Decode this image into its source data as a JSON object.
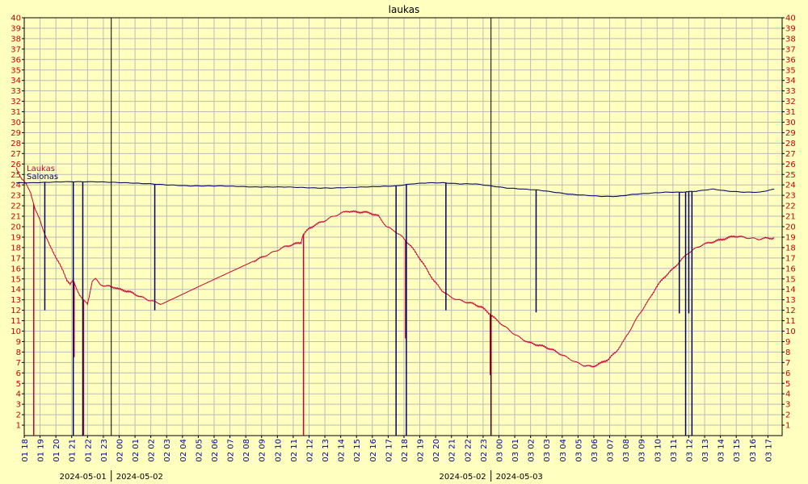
{
  "chart_data": {
    "type": "line",
    "title": "laukas",
    "xlabel": "",
    "ylabel": "",
    "ylim": [
      0,
      40
    ],
    "grid": true,
    "legend_position": "top-left",
    "y_ticks": [
      1,
      2,
      3,
      4,
      5,
      6,
      7,
      8,
      9,
      10,
      11,
      12,
      13,
      14,
      15,
      16,
      17,
      18,
      19,
      20,
      21,
      22,
      23,
      24,
      25,
      26,
      27,
      28,
      29,
      30,
      31,
      32,
      33,
      34,
      35,
      36,
      37,
      38,
      39,
      40
    ],
    "x_ticks": [
      "01 18",
      "01 19",
      "01 20",
      "01 21",
      "01 22",
      "01 23",
      "02 00",
      "02 01",
      "02 02",
      "02 03",
      "02 04",
      "02 05",
      "02 06",
      "02 07",
      "02 08",
      "02 09",
      "02 10",
      "02 11",
      "02 12",
      "02 13",
      "02 14",
      "02 15",
      "02 16",
      "02 17",
      "02 18",
      "02 19",
      "02 20",
      "02 21",
      "02 22",
      "02 23",
      "03 00",
      "03 01",
      "03 02",
      "03 03",
      "03 04",
      "03 05",
      "03 06",
      "03 07",
      "03 08",
      "03 09",
      "03 10",
      "03 11",
      "03 12",
      "03 13",
      "03 14",
      "03 15",
      "03 16",
      "03 17"
    ],
    "day_markers": [
      {
        "hour": 6,
        "left": "2024-05-01",
        "right": "2024-05-02"
      },
      {
        "hour": 30,
        "left": "2024-05-02",
        "right": "2024-05-03"
      }
    ],
    "colors": {
      "laukas": "#CC0033",
      "salonas": "#000066",
      "axis_red": "#CC0000",
      "axis_blue": "#0000AA",
      "grid": "#BBBBBB",
      "background": "#FFFFC0"
    },
    "series": [
      {
        "name": "Laukas",
        "color": "#CC0033",
        "x": [
          0.0,
          0.3,
          0.6,
          0.9,
          1.2,
          1.5,
          1.8,
          2.1,
          2.4,
          2.7,
          3.0,
          3.2,
          3.4,
          3.6,
          3.8,
          4.0,
          4.2,
          4.5,
          4.8,
          5.0,
          5.3,
          5.6,
          5.9,
          6.2,
          6.5,
          6.8,
          7.1,
          7.4,
          7.7,
          8.0,
          8.3,
          8.6,
          8.9,
          9.2,
          12.0,
          15.0,
          17.0,
          18.0,
          18.1,
          18.5,
          18.9,
          19.4,
          19.9,
          20.4,
          20.9,
          21.4,
          21.9,
          22.4,
          22.9,
          23.4,
          23.9,
          24.4,
          24.9,
          25.4,
          25.9,
          26.4,
          26.9,
          27.4,
          27.9,
          28.4,
          28.9,
          29.4,
          29.9,
          30.4,
          30.9,
          31.4,
          31.9,
          32.4,
          32.9,
          33.4,
          33.9,
          34.4,
          34.9,
          35.4,
          35.9,
          36.4,
          36.9,
          37.4,
          37.9,
          38.4,
          38.9,
          39.4,
          39.9,
          40.4,
          40.9,
          41.4,
          41.9,
          42.4,
          42.9,
          43.4,
          43.9,
          44.4,
          44.9,
          45.4,
          45.9,
          46.4,
          46.9,
          47.4,
          47.9
        ],
        "y": [
          25.6,
          24.7,
          24.1,
          23.3,
          21.6,
          20.6,
          19.3,
          18.2,
          17.4,
          16.5,
          15.6,
          14.9,
          14.5,
          14.8,
          14.1,
          13.5,
          13.0,
          12.6,
          14.8,
          15.0,
          14.5,
          14.3,
          14.3,
          14.2,
          14.0,
          13.9,
          13.8,
          13.6,
          13.4,
          13.2,
          13.0,
          12.9,
          12.7,
          12.6,
          14.6,
          16.7,
          18.1,
          18.5,
          19.2,
          19.8,
          20.2,
          20.5,
          20.9,
          21.2,
          21.5,
          21.4,
          21.4,
          21.3,
          21.0,
          20.0,
          19.6,
          19.0,
          18.2,
          17.2,
          16.0,
          14.8,
          13.9,
          13.3,
          13.0,
          12.8,
          12.6,
          12.3,
          11.7,
          11.0,
          10.4,
          9.8,
          9.3,
          8.9,
          8.7,
          8.5,
          8.2,
          7.8,
          7.4,
          7.0,
          6.7,
          6.6,
          6.9,
          7.3,
          8.0,
          9.1,
          10.4,
          11.7,
          12.8,
          14.1,
          15.1,
          15.8,
          16.6,
          17.4,
          17.9,
          18.3,
          18.5,
          18.7,
          18.9,
          19.1,
          19.0,
          18.9,
          18.8,
          18.9,
          18.9
        ]
      },
      {
        "name": "Salonas",
        "color": "#000066",
        "x": [
          0.0,
          1.0,
          3.0,
          5.0,
          7.0,
          8.5,
          9.5,
          11.0,
          13.0,
          15.0,
          17.0,
          19.0,
          20.0,
          22.0,
          24.0,
          25.0,
          26.0,
          27.0,
          28.0,
          29.0,
          30.0,
          31.0,
          32.0,
          33.0,
          34.0,
          35.0,
          36.0,
          37.0,
          38.0,
          39.0,
          40.0,
          41.0,
          42.0,
          43.0,
          44.0,
          45.0,
          46.0,
          47.0,
          47.9
        ],
        "y": [
          24.2,
          24.2,
          24.3,
          24.3,
          24.2,
          24.1,
          24.0,
          23.9,
          23.9,
          23.8,
          23.8,
          23.7,
          23.7,
          23.8,
          23.9,
          24.1,
          24.2,
          24.2,
          24.1,
          24.1,
          23.9,
          23.7,
          23.6,
          23.5,
          23.3,
          23.1,
          23.0,
          22.9,
          22.9,
          23.1,
          23.2,
          23.3,
          23.3,
          23.4,
          23.6,
          23.4,
          23.3,
          23.3,
          23.6
        ]
      }
    ],
    "drops": [
      {
        "series": "Laukas",
        "x": 1.1,
        "y": 0.0
      },
      {
        "series": "Laukas",
        "x": 3.65,
        "y": 7.5
      },
      {
        "series": "Laukas",
        "x": 4.25,
        "y": 0.0
      },
      {
        "series": "Laukas",
        "x": 18.15,
        "y": 0.0
      },
      {
        "series": "Laukas",
        "x": 24.6,
        "y": 9.3
      },
      {
        "series": "Laukas",
        "x": 29.95,
        "y": 5.8
      },
      {
        "series": "Laukas",
        "x": 30.0,
        "y": 0.0
      },
      {
        "series": "Salonas",
        "x": 1.8,
        "y": 12.0
      },
      {
        "series": "Salonas",
        "x": 3.6,
        "y": 0.0
      },
      {
        "series": "Salonas",
        "x": 4.2,
        "y": 0.0
      },
      {
        "series": "Salonas",
        "x": 8.75,
        "y": 12.0
      },
      {
        "series": "Salonas",
        "x": 24.0,
        "y": 0.0
      },
      {
        "series": "Salonas",
        "x": 24.65,
        "y": 0.0
      },
      {
        "series": "Salonas",
        "x": 27.15,
        "y": 12.0
      },
      {
        "series": "Salonas",
        "x": 32.85,
        "y": 11.8
      },
      {
        "series": "Salonas",
        "x": 41.9,
        "y": 11.7
      },
      {
        "series": "Salonas",
        "x": 42.3,
        "y": 0.0
      },
      {
        "series": "Salonas",
        "x": 42.5,
        "y": 11.7
      },
      {
        "series": "Salonas",
        "x": 42.7,
        "y": 0.0
      }
    ]
  }
}
